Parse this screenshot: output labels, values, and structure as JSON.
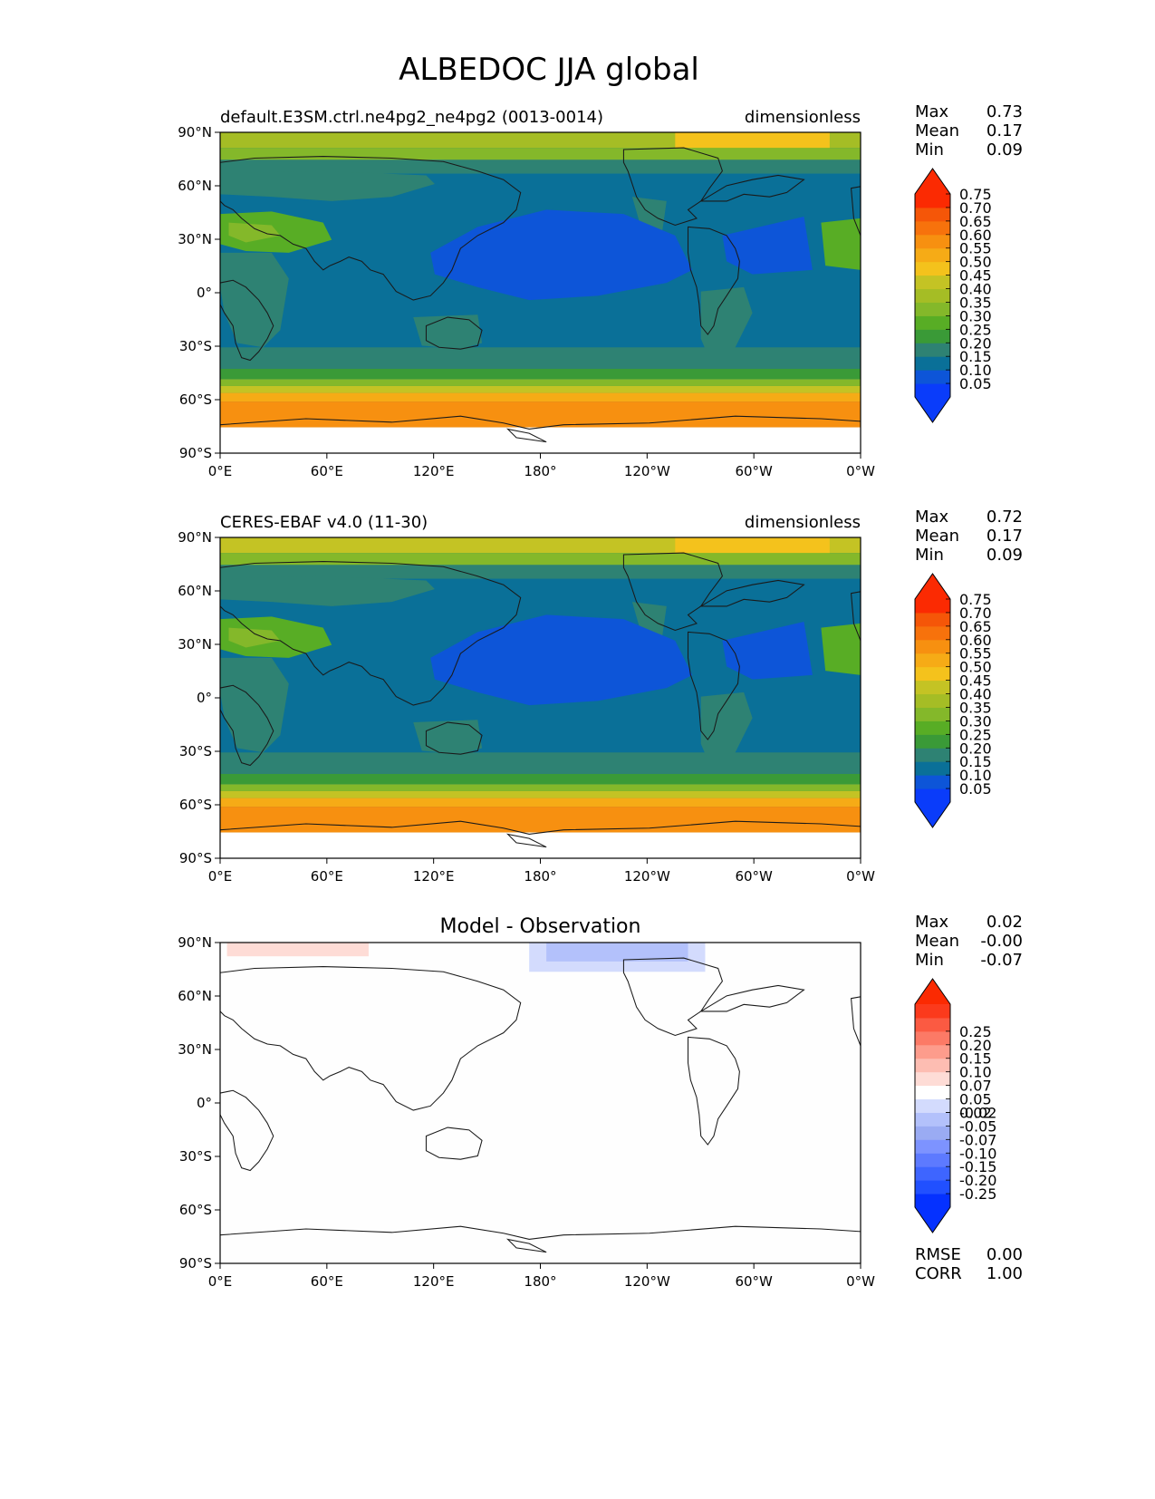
{
  "figure": {
    "title": "ALBEDOC JJA global"
  },
  "x_ticks": [
    "0°E",
    "60°E",
    "120°E",
    "180°",
    "120°W",
    "60°W",
    "0°W"
  ],
  "y_ticks": [
    "90°N",
    "60°N",
    "30°N",
    "0°",
    "30°S",
    "60°S",
    "90°S"
  ],
  "colors": {
    "colormap": [
      "#0a3cfa",
      "#0d55d8",
      "#0a7098",
      "#2e8273",
      "#3a9a37",
      "#58ad25",
      "#84b82a",
      "#a5bd25",
      "#c4c324",
      "#f4c21c",
      "#f6ab16",
      "#f79010",
      "#f7720c",
      "#f55608",
      "#fb2a02"
    ],
    "colormap_over": "#fb2a02",
    "colormap_under": "#0a3cfa",
    "diff_colormap": [
      "#0531ff",
      "#2150ff",
      "#3e65ff",
      "#5d7aff",
      "#7d93ff",
      "#9aabf3",
      "#b3c1fb",
      "#d3dbfd",
      "#ffffff",
      "#fedcd6",
      "#fdbdb2",
      "#fd9c8c",
      "#fc7a66",
      "#fb5a42",
      "#fb3a1c"
    ],
    "diff_over": "#fb2a02",
    "diff_under": "#0531ff"
  },
  "panels": [
    {
      "left_title": "default.E3SM.ctrl.ne4pg2_ne4pg2 (0013-0014)",
      "center_title": "",
      "right_title": "dimensionless",
      "stats": [
        {
          "label": "Max",
          "value": "0.73"
        },
        {
          "label": "Mean",
          "value": "0.17"
        },
        {
          "label": "Min",
          "value": "0.09"
        }
      ],
      "colorbar_labels": [
        "0.05",
        "0.10",
        "0.15",
        "0.20",
        "0.25",
        "0.30",
        "0.35",
        "0.40",
        "0.45",
        "0.50",
        "0.55",
        "0.60",
        "0.65",
        "0.70",
        "0.75"
      ]
    },
    {
      "left_title": "CERES-EBAF v4.0 (11-30)",
      "center_title": "",
      "right_title": "dimensionless",
      "stats": [
        {
          "label": "Max",
          "value": "0.72"
        },
        {
          "label": "Mean",
          "value": "0.17"
        },
        {
          "label": "Min",
          "value": "0.09"
        }
      ],
      "colorbar_labels": [
        "0.05",
        "0.10",
        "0.15",
        "0.20",
        "0.25",
        "0.30",
        "0.35",
        "0.40",
        "0.45",
        "0.50",
        "0.55",
        "0.60",
        "0.65",
        "0.70",
        "0.75"
      ]
    },
    {
      "left_title": "",
      "center_title": "Model - Observation",
      "right_title": "",
      "stats": [
        {
          "label": "Max",
          "value": "0.02"
        },
        {
          "label": "Mean",
          "value": "-0.00"
        },
        {
          "label": "Min",
          "value": "-0.07"
        }
      ],
      "colorbar_labels": [
        "-0.25",
        "-0.20",
        "-0.15",
        "-0.10",
        "-0.07",
        "-0.05",
        "-0.02",
        "0.02",
        "0.05",
        "0.07",
        "0.10",
        "0.15",
        "0.20",
        "0.25"
      ],
      "metrics": [
        {
          "label": "RMSE",
          "value": "0.00"
        },
        {
          "label": "CORR",
          "value": "1.00"
        }
      ]
    }
  ]
}
